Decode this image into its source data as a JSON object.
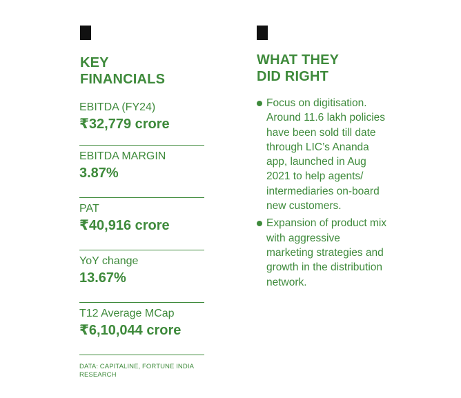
{
  "left": {
    "heading": [
      "KEY",
      "FINANCIALS"
    ],
    "items": [
      {
        "label": "EBITDA (FY24)",
        "value": "₹32,779 crore"
      },
      {
        "label": "EBITDA MARGIN",
        "value": "3.87%"
      },
      {
        "label": "PAT",
        "value": "₹40,916 crore"
      },
      {
        "label": "YoY change",
        "value": "13.67%"
      },
      {
        "label": "T12 Average MCap",
        "value": "₹6,10,044 crore"
      }
    ],
    "source": "DATA: CAPITALINE, FORTUNE INDIA RESEARCH"
  },
  "right": {
    "heading": [
      "WHAT THEY",
      "DID RIGHT"
    ],
    "bullets": [
      "Focus on digitisation. Around 11.6 lakh policies have been sold till date through LIC’s Ananda app, launched in Aug 2021 to help agents/ intermediaries on-board new customers.",
      "Expansion of product mix with aggressive marketing strategies and growth in the distribution network."
    ]
  },
  "colors": {
    "accent": "#3e8a3b",
    "marker": "#111111"
  }
}
